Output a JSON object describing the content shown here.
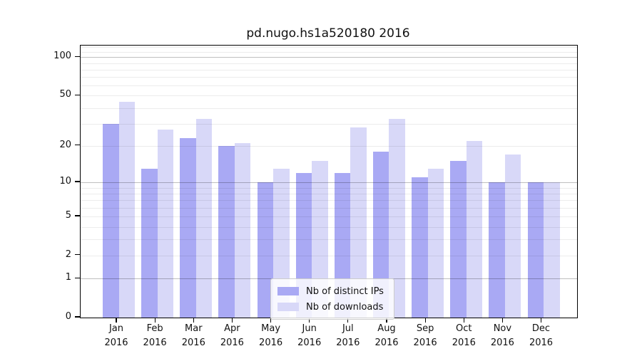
{
  "title": "pd.nugo.hs1a520180 2016",
  "colors": {
    "ips": "#a9a9f4",
    "downloads": "#d8d8f8",
    "axis": "#000000",
    "grid_minor": "#ebebeb",
    "grid_major": "#bfbfbf"
  },
  "legend": {
    "items": [
      {
        "label": "Nb of distinct IPs",
        "series": "ips"
      },
      {
        "label": "Nb of downloads",
        "series": "downloads"
      }
    ]
  },
  "y_axis": {
    "scale": "log1p",
    "tick_values": [
      0,
      1,
      2,
      5,
      10,
      20,
      50,
      100
    ],
    "tick_labels": [
      "0",
      "1",
      "2",
      "5",
      "10",
      "20",
      "50",
      "100"
    ],
    "minor_gridlines": [
      2,
      3,
      4,
      5,
      6,
      7,
      8,
      9,
      20,
      30,
      40,
      50,
      60,
      70,
      80,
      90,
      110,
      120
    ],
    "major_gridlines": [
      1,
      10,
      100
    ],
    "max": 123
  },
  "x_axis": {
    "months": [
      "Jan",
      "Feb",
      "Mar",
      "Apr",
      "May",
      "Jun",
      "Jul",
      "Aug",
      "Sep",
      "Oct",
      "Nov",
      "Dec"
    ],
    "year": "2016"
  },
  "chart_data": {
    "type": "bar",
    "title": "pd.nugo.hs1a520180 2016",
    "categories": [
      "Jan 2016",
      "Feb 2016",
      "Mar 2016",
      "Apr 2016",
      "May 2016",
      "Jun 2016",
      "Jul 2016",
      "Aug 2016",
      "Sep 2016",
      "Oct 2016",
      "Nov 2016",
      "Dec 2016"
    ],
    "series": [
      {
        "name": "Nb of distinct IPs",
        "color": "#a9a9f4",
        "values": [
          30,
          13,
          23,
          20,
          10,
          12,
          12,
          18,
          11,
          15,
          10,
          10
        ]
      },
      {
        "name": "Nb of downloads",
        "color": "#d8d8f8",
        "values": [
          45,
          27,
          33,
          21,
          13,
          15,
          28,
          33,
          13,
          22,
          17,
          10
        ]
      }
    ],
    "xlabel": "",
    "ylabel": "",
    "yscale": "log1p",
    "ylim": [
      0,
      123
    ],
    "yticks": [
      0,
      1,
      2,
      5,
      10,
      20,
      50,
      100
    ],
    "grid": true,
    "legend_position": "lower-center-inside"
  }
}
